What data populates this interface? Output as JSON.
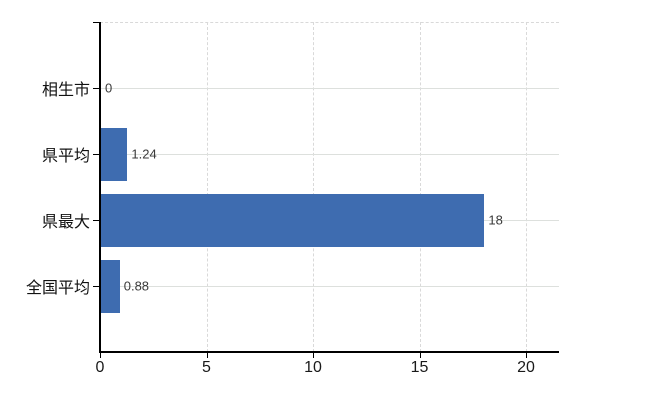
{
  "chart_data": {
    "type": "bar",
    "orientation": "horizontal",
    "title": "",
    "xlabel": "",
    "ylabel": "",
    "categories": [
      "相生市",
      "県平均",
      "県最大",
      "全国平均"
    ],
    "values": [
      0,
      1.24,
      18,
      0.88
    ],
    "value_labels": [
      "0",
      "1.24",
      "18",
      "0.88"
    ],
    "x_ticks": [
      0,
      5,
      10,
      15,
      20
    ],
    "x_tick_labels": [
      "0",
      "5",
      "10",
      "15",
      "20"
    ],
    "xlim": [
      0,
      21.55
    ],
    "grid": "horizontal solid through categories, vertical dashed at ticks",
    "legend": "none",
    "colors": {
      "bar": "#3e6cb0",
      "axis": "#000000",
      "grid_horizontal": "#dde0dd",
      "grid_vertical": "#d9d9d9",
      "category_text": "#111111",
      "tick_text": "#1a1a1a",
      "value_text": "#3a3a3a",
      "background": "#ffffff"
    }
  }
}
